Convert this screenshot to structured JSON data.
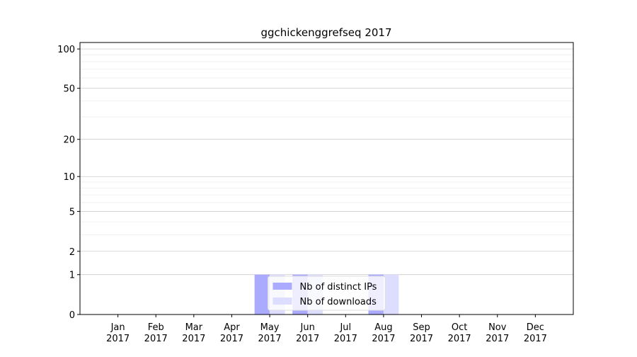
{
  "chart_data": {
    "type": "bar",
    "title": "ggchickenggrefseq 2017",
    "categories": [
      "Jan 2017",
      "Feb 2017",
      "Mar 2017",
      "Apr 2017",
      "May 2017",
      "Jun 2017",
      "Jul 2017",
      "Aug 2017",
      "Sep 2017",
      "Oct 2017",
      "Nov 2017",
      "Dec 2017"
    ],
    "series": [
      {
        "name": "Nb of distinct IPs",
        "color": "#aaaaff",
        "values": [
          0,
          0,
          0,
          0,
          1,
          1,
          0,
          1,
          0,
          0,
          0,
          0
        ]
      },
      {
        "name": "Nb of downloads",
        "color": "#ddddff",
        "values": [
          0,
          0,
          0,
          0,
          1,
          1,
          0,
          1,
          0,
          0,
          0,
          0
        ]
      }
    ],
    "yscale": "log1p",
    "ylim": [
      0,
      112
    ],
    "yticks": [
      0,
      1,
      2,
      5,
      10,
      20,
      50,
      100
    ],
    "yminorticks": [
      3,
      4,
      6,
      7,
      8,
      9,
      30,
      40,
      60,
      70,
      80,
      90
    ],
    "grid": true,
    "legend": "lower center"
  }
}
